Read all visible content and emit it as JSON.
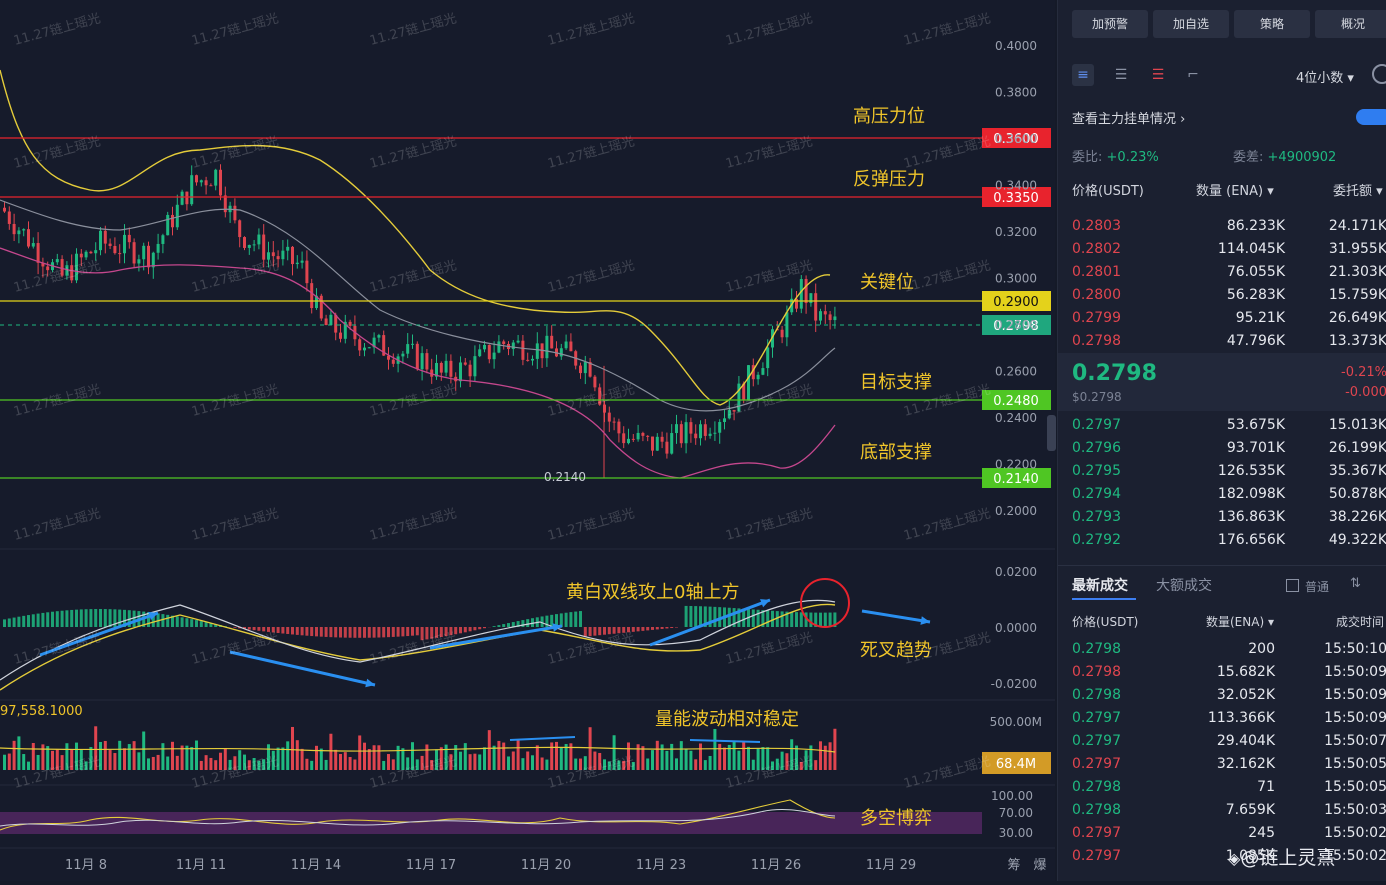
{
  "chart": {
    "price_axis": [
      "0.4000",
      "0.3800",
      "0.3600",
      "0.3400",
      "0.3200",
      "0.3000",
      "0.2800",
      "0.2600",
      "0.2400",
      "0.2200",
      "0.2000"
    ],
    "macd_axis": [
      "0.0200",
      "0.0000",
      "-0.0200"
    ],
    "vol_axis": [
      "500.00M"
    ],
    "rsi_axis": [
      "100.00",
      "70.00",
      "30.00"
    ],
    "date_axis": [
      "11月 8",
      "11月 11",
      "11月 14",
      "11月 17",
      "11月 20",
      "11月 23",
      "11月 26",
      "11月 29"
    ],
    "corner_labels": [
      "筹",
      "爆"
    ],
    "levels": [
      {
        "label": "高压力位",
        "value": "0.3600",
        "color": "#e8232d"
      },
      {
        "label": "反弹压力",
        "value": "0.3350",
        "color": "#e8232d"
      },
      {
        "label": "关键位",
        "value": "0.2900",
        "color": "#e4d21b"
      },
      {
        "label": "目标支撑",
        "value": "0.2480",
        "color": "#4fc623"
      },
      {
        "label": "底部支撑",
        "value": "0.2140",
        "color": "#4fc623"
      }
    ],
    "current_price_tag": "0.2798",
    "low_marker": "0.2140",
    "macd_annotation": "黄白双线攻上0轴上方",
    "macd_note": "死叉趋势",
    "volume_annotation": "量能波动相对稳定",
    "volume_left_value": "97,558.1000",
    "volume_tag": "68.4M",
    "rsi_note": "多空博弈",
    "watermark": "11.27链上瑶光",
    "signature": "@链上灵熹"
  },
  "panel": {
    "top_buttons": [
      "加预警",
      "加自选",
      "策略",
      "概况"
    ],
    "decimals": "4位小数",
    "main_orders_link": "查看主力挂单情况",
    "weibi_label": "委比:",
    "weibi_value": "+0.23%",
    "weicha_label": "委差:",
    "weicha_value": "+4900902",
    "ob_headers": [
      "价格(USDT)",
      "数量 (ENA)",
      "委托额"
    ],
    "asks": [
      {
        "price": "0.2803",
        "qty": "86.233K",
        "amt": "24.171K"
      },
      {
        "price": "0.2802",
        "qty": "114.045K",
        "amt": "31.955K"
      },
      {
        "price": "0.2801",
        "qty": "76.055K",
        "amt": "21.303K"
      },
      {
        "price": "0.2800",
        "qty": "56.283K",
        "amt": "15.759K"
      },
      {
        "price": "0.2799",
        "qty": "95.21K",
        "amt": "26.649K"
      },
      {
        "price": "0.2798",
        "qty": "47.796K",
        "amt": "13.373K"
      }
    ],
    "mid_price": "0.2798",
    "mid_sub": "$0.2798",
    "mid_change": "-0.21%",
    "mid_change2": "-0.000",
    "bids": [
      {
        "price": "0.2797",
        "qty": "53.675K",
        "amt": "15.013K"
      },
      {
        "price": "0.2796",
        "qty": "93.701K",
        "amt": "26.199K"
      },
      {
        "price": "0.2795",
        "qty": "126.535K",
        "amt": "35.367K"
      },
      {
        "price": "0.2794",
        "qty": "182.098K",
        "amt": "50.878K"
      },
      {
        "price": "0.2793",
        "qty": "136.863K",
        "amt": "38.226K"
      },
      {
        "price": "0.2792",
        "qty": "176.656K",
        "amt": "49.322K"
      }
    ],
    "trade_tabs": [
      "最新成交",
      "大额成交"
    ],
    "normal_label": "普通",
    "trade_headers": [
      "价格(USDT)",
      "数量(ENA)",
      "成交时间"
    ],
    "trades": [
      {
        "price": "0.2798",
        "qty": "200",
        "time": "15:50:10",
        "side": "green"
      },
      {
        "price": "0.2798",
        "qty": "15.682K",
        "time": "15:50:09",
        "side": "red"
      },
      {
        "price": "0.2798",
        "qty": "32.052K",
        "time": "15:50:09",
        "side": "green"
      },
      {
        "price": "0.2797",
        "qty": "113.366K",
        "time": "15:50:09",
        "side": "green"
      },
      {
        "price": "0.2797",
        "qty": "29.404K",
        "time": "15:50:07",
        "side": "green"
      },
      {
        "price": "0.2797",
        "qty": "32.162K",
        "time": "15:50:05",
        "side": "red"
      },
      {
        "price": "0.2798",
        "qty": "71",
        "time": "15:50:05",
        "side": "green"
      },
      {
        "price": "0.2798",
        "qty": "7.659K",
        "time": "15:50:03",
        "side": "green"
      },
      {
        "price": "0.2797",
        "qty": "245",
        "time": "15:50:02",
        "side": "red"
      },
      {
        "price": "0.2797",
        "qty": "1.085K",
        "time": "15:50:02",
        "side": "red"
      }
    ]
  }
}
